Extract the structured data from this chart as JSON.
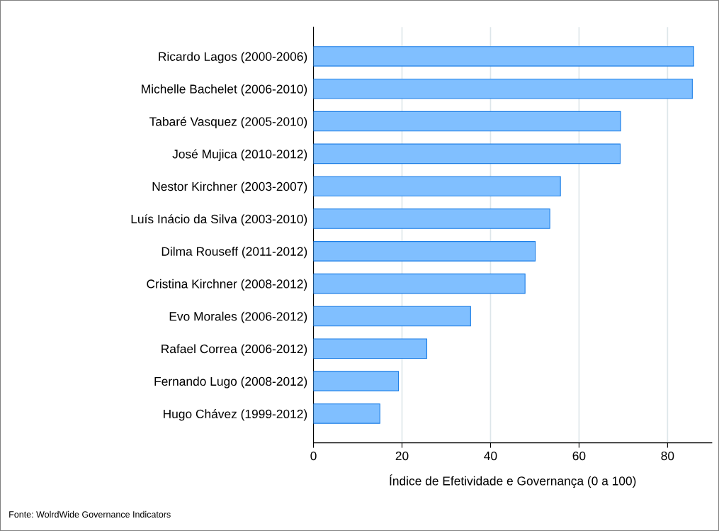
{
  "chart_data": {
    "type": "bar",
    "orientation": "horizontal",
    "categories": [
      "Ricardo Lagos (2000-2006)",
      "Michelle Bachelet (2006-2010)",
      "Tabaré Vasquez (2005-2010)",
      "José Mujica (2010-2012)",
      "Nestor Kirchner (2003-2007)",
      "Luís Inácio da Silva (2003-2010)",
      "Dilma Rouseff (2011-2012)",
      "Cristina Kirchner (2008-2012)",
      "Evo Morales (2006-2012)",
      "Rafael Correa (2006-2012)",
      "Fernando Lugo (2008-2012)",
      "Hugo Chávez (1999-2012)"
    ],
    "values": [
      85.9,
      85.6,
      69.4,
      69.3,
      55.8,
      53.4,
      50.1,
      47.8,
      35.5,
      25.6,
      19.2,
      15.0
    ],
    "color": "#80bfff",
    "xlim": [
      0,
      90
    ],
    "xticks": [
      0,
      20,
      40,
      60,
      80
    ],
    "xlabel": "Índice de Efetividade e Governança (0 a 100)",
    "grid": "x",
    "annotations": [
      "Fonte: WolrdWide Governance Indicators"
    ]
  }
}
